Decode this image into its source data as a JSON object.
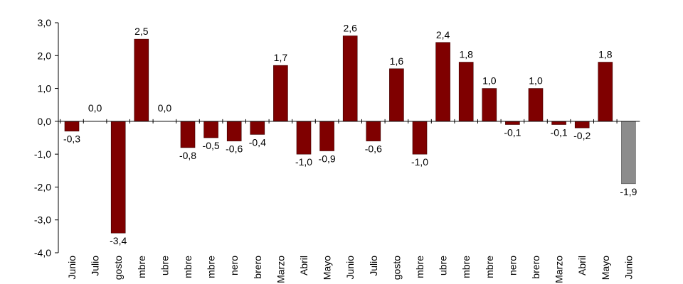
{
  "chart_data": {
    "type": "bar",
    "title": "",
    "xlabel": "",
    "ylabel": "",
    "ylim": [
      -4.0,
      3.0
    ],
    "yticks": [
      "3,0",
      "2,0",
      "1,0",
      "0,0",
      "-1,0",
      "-2,0",
      "-3,0",
      "-4,0"
    ],
    "grid": false,
    "colors": {
      "default": "#7f0000",
      "highlight": "#8c8c8c"
    },
    "highlight_index": 24,
    "categories": [
      "Junio",
      "Julio",
      "gosto",
      "mbre",
      "ubre",
      "mbre",
      "mbre",
      "nero",
      "brero",
      "Marzo",
      "Abril",
      "Mayo",
      "Junio",
      "Julio",
      "gosto",
      "mbre",
      "ubre",
      "mbre",
      "mbre",
      "nero",
      "brero",
      "Marzo",
      "Abril",
      "Mayo",
      "Junio"
    ],
    "values": [
      -0.3,
      0.0,
      -3.4,
      2.5,
      0.0,
      -0.8,
      -0.5,
      -0.6,
      -0.4,
      1.7,
      -1.0,
      -0.9,
      2.6,
      -0.6,
      1.6,
      -1.0,
      2.4,
      1.8,
      1.0,
      -0.1,
      1.0,
      -0.1,
      -0.2,
      1.8,
      -1.9
    ],
    "labels": [
      "-0,3",
      "0,0",
      "-3,4",
      "2,5",
      "0,0",
      "-0,8",
      "-0,5",
      "-0,6",
      "-0,4",
      "1,7",
      "-1,0",
      "-0,9",
      "2,6",
      "-0,6",
      "1,6",
      "-1,0",
      "2,4",
      "1,8",
      "1,0",
      "-0,1",
      "1,0",
      "-0,1",
      "-0,2",
      "1,8",
      "-1,9"
    ]
  }
}
